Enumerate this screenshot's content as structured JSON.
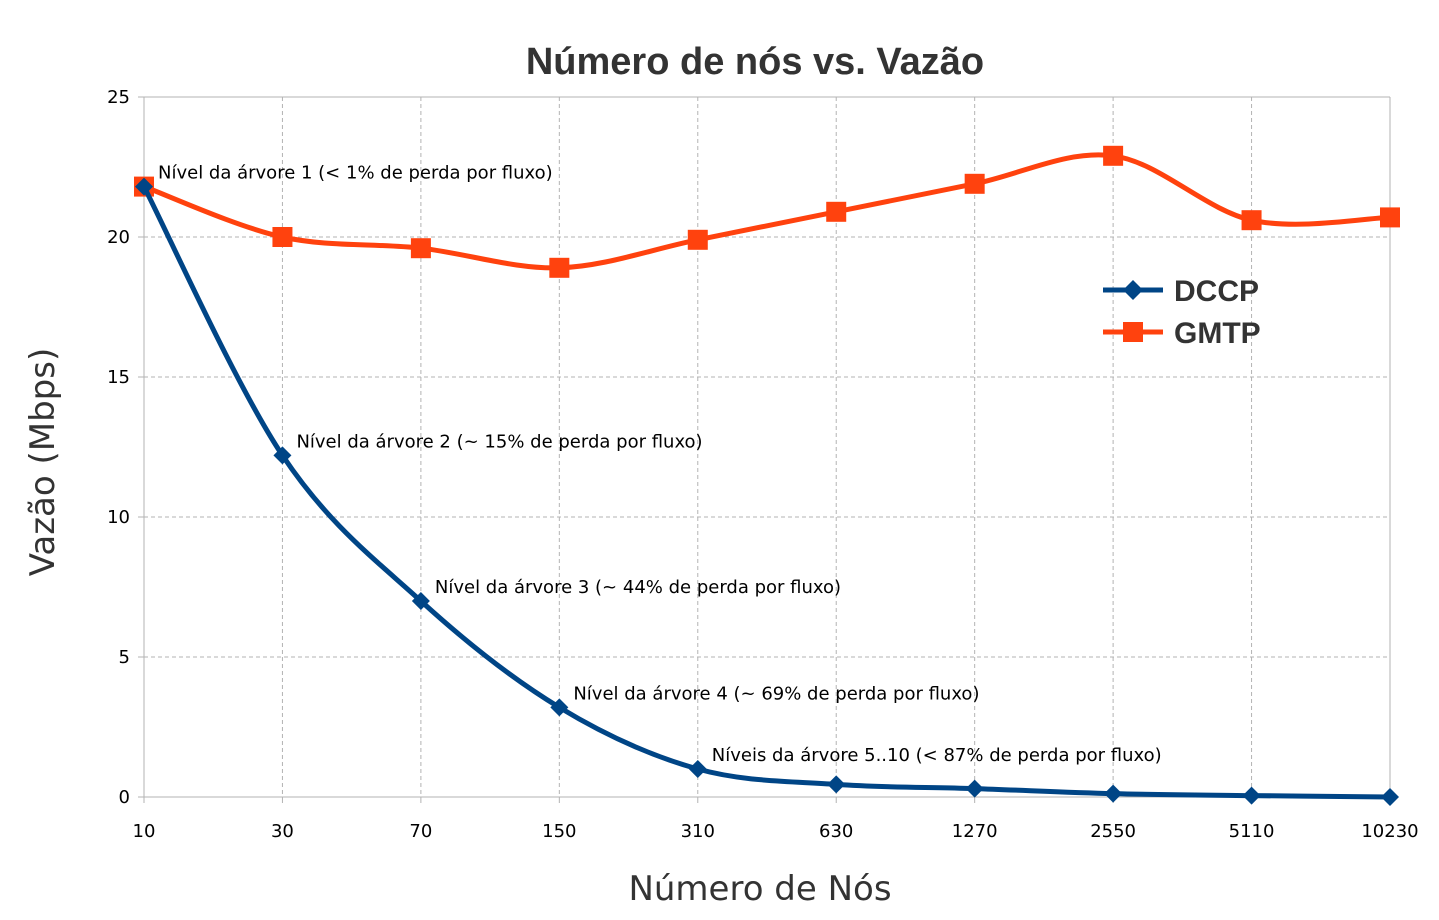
{
  "chart_data": {
    "type": "line",
    "title": "Número de nós vs. Vazão",
    "xlabel": "Número de Nós",
    "ylabel": "Vazão (Mbps)",
    "categories": [
      "10",
      "30",
      "70",
      "150",
      "310",
      "630",
      "1270",
      "2550",
      "5110",
      "10230"
    ],
    "ylim": [
      0,
      25
    ],
    "yticks": [
      "0",
      "5",
      "10",
      "15",
      "20",
      "25"
    ],
    "grid": true,
    "legend_position": "right",
    "series": [
      {
        "name": "DCCP",
        "color": "#004586",
        "marker": "diamond",
        "values": [
          21.8,
          12.2,
          7.0,
          3.2,
          1.0,
          0.45,
          0.3,
          0.12,
          0.05,
          0.0
        ]
      },
      {
        "name": "GMTP",
        "color": "#ff420e",
        "marker": "square",
        "values": [
          21.8,
          20.0,
          19.6,
          18.9,
          19.9,
          20.9,
          21.9,
          22.9,
          20.6,
          20.7
        ]
      }
    ],
    "annotations": [
      {
        "text": "Nível da árvore 1 (< 1% de perda por fluxo)",
        "category": "10",
        "value": 21.8
      },
      {
        "text": "Nível da árvore 2 (~ 15% de perda por fluxo)",
        "category": "30",
        "value": 12.2
      },
      {
        "text": "Nível da árvore 3 (~ 44% de perda por fluxo)",
        "category": "70",
        "value": 7.0
      },
      {
        "text": "Nível da árvore 4 (~ 69% de perda por fluxo)",
        "category": "150",
        "value": 3.2
      },
      {
        "text": "Níveis da árvore 5..10 (< 87% de perda por fluxo)",
        "category": "310",
        "value": 1.0
      }
    ]
  }
}
